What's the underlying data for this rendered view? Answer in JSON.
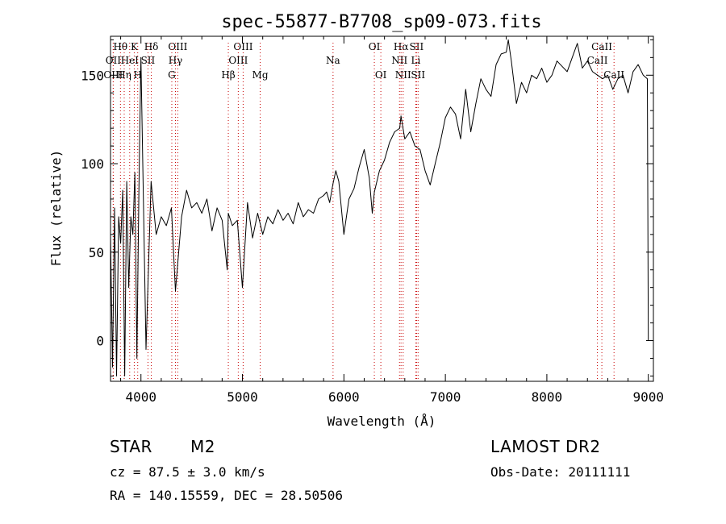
{
  "chart_data": {
    "type": "line",
    "title": "spec-55877-B7708_sp09-073.fits",
    "xlabel": "Wavelength (Å)",
    "ylabel": "Flux (relative)",
    "xlim": [
      3700,
      9050
    ],
    "ylim": [
      -23,
      172
    ],
    "x_ticks": [
      4000,
      5000,
      6000,
      7000,
      8000,
      9000
    ],
    "y_ticks": [
      0,
      50,
      100,
      150
    ],
    "x_tick_labels": [
      "4000",
      "5000",
      "6000",
      "7000",
      "8000",
      "9000"
    ],
    "y_tick_labels": [
      "0",
      "50",
      "100",
      "150"
    ],
    "grid": false,
    "line_color": "#000000",
    "marker_color": "#c80000",
    "series": [
      {
        "x": [
          3700,
          3720,
          3740,
          3760,
          3780,
          3800,
          3820,
          3840,
          3860,
          3880,
          3900,
          3920,
          3940,
          3960,
          3980,
          4000,
          4050,
          4100,
          4150,
          4200,
          4250,
          4300,
          4340,
          4400,
          4450,
          4500,
          4550,
          4600,
          4650,
          4700,
          4750,
          4800,
          4850,
          4861,
          4900,
          4950,
          5000,
          5050,
          5100,
          5150,
          5200,
          5250,
          5300,
          5350,
          5400,
          5450,
          5500,
          5550,
          5600,
          5650,
          5700,
          5750,
          5800,
          5830,
          5860,
          5890,
          5920,
          5950,
          6000,
          6050,
          6100,
          6150,
          6200,
          6250,
          6280,
          6300,
          6350,
          6400,
          6450,
          6500,
          6550,
          6563,
          6600,
          6650,
          6700,
          6750,
          6800,
          6850,
          6900,
          6950,
          7000,
          7050,
          7100,
          7150,
          7200,
          7250,
          7300,
          7350,
          7400,
          7450,
          7500,
          7550,
          7600,
          7620,
          7650,
          7700,
          7750,
          7800,
          7850,
          7900,
          7950,
          8000,
          8050,
          8100,
          8150,
          8200,
          8250,
          8300,
          8350,
          8400,
          8450,
          8500,
          8550,
          8600,
          8650,
          8700,
          8750,
          8800,
          8850,
          8900,
          8950,
          8990,
          9000
        ],
        "y": [
          60,
          -15,
          75,
          -20,
          70,
          55,
          85,
          -20,
          90,
          30,
          70,
          60,
          95,
          -10,
          85,
          160,
          -5,
          90,
          60,
          70,
          65,
          75,
          28,
          70,
          85,
          75,
          78,
          72,
          80,
          62,
          75,
          68,
          40,
          72,
          65,
          68,
          30,
          78,
          58,
          72,
          60,
          70,
          66,
          74,
          68,
          72,
          66,
          78,
          70,
          74,
          72,
          80,
          82,
          84,
          78,
          88,
          96,
          90,
          60,
          80,
          86,
          98,
          108,
          92,
          72,
          84,
          96,
          102,
          112,
          118,
          120,
          127,
          114,
          118,
          110,
          108,
          96,
          88,
          100,
          112,
          126,
          132,
          128,
          114,
          142,
          118,
          134,
          148,
          142,
          138,
          156,
          162,
          163,
          170,
          158,
          134,
          146,
          140,
          150,
          148,
          154,
          146,
          150,
          158,
          155,
          152,
          160,
          168,
          154,
          158,
          152,
          150,
          148,
          150,
          142,
          148,
          150,
          140,
          152,
          156,
          150,
          148,
          0
        ]
      }
    ],
    "line_markers": [
      {
        "name": "Hθ",
        "x": 3798,
        "row": 0
      },
      {
        "name": "K",
        "x": 3934,
        "row": 0
      },
      {
        "name": "Hδ",
        "x": 4102,
        "row": 0
      },
      {
        "name": "OIII",
        "x": 4363,
        "row": 0
      },
      {
        "name": "OIII",
        "x": 5007,
        "row": 0
      },
      {
        "name": "OI",
        "x": 6300,
        "row": 0
      },
      {
        "name": "Hα",
        "x": 6563,
        "row": 0
      },
      {
        "name": "SII",
        "x": 6716,
        "row": 0
      },
      {
        "name": "CaII",
        "x": 8542,
        "row": 0
      },
      {
        "name": "OII",
        "x": 3727,
        "row": 1
      },
      {
        "name": "HeI",
        "x": 3889,
        "row": 1
      },
      {
        "name": "SII",
        "x": 4069,
        "row": 1
      },
      {
        "name": "Hγ",
        "x": 4340,
        "row": 1
      },
      {
        "name": "OIII",
        "x": 4959,
        "row": 1
      },
      {
        "name": "Na",
        "x": 5893,
        "row": 1
      },
      {
        "name": "NII",
        "x": 6548,
        "row": 1
      },
      {
        "name": "Li",
        "x": 6708,
        "row": 1
      },
      {
        "name": "CaII",
        "x": 8498,
        "row": 1
      },
      {
        "name": "OIII",
        "x": 3727,
        "row": 2
      },
      {
        "name": "Hη",
        "x": 3835,
        "row": 2
      },
      {
        "name": "H",
        "x": 3968,
        "row": 2
      },
      {
        "name": "G",
        "x": 4304,
        "row": 2
      },
      {
        "name": "Hβ",
        "x": 4861,
        "row": 2
      },
      {
        "name": "Mg",
        "x": 5175,
        "row": 2
      },
      {
        "name": "OI",
        "x": 6364,
        "row": 2
      },
      {
        "name": "NII",
        "x": 6584,
        "row": 2
      },
      {
        "name": "SII",
        "x": 6731,
        "row": 2
      },
      {
        "name": "CaII",
        "x": 8662,
        "row": 2
      }
    ]
  },
  "info": {
    "object_class": "STAR",
    "subclass": "M2",
    "cz": "cz = 87.5 ± 3.0 km/s",
    "coords": "RA = 140.15559, DEC =  28.50506",
    "survey": "LAMOST DR2",
    "obs_date": "Obs-Date: 20111111"
  }
}
